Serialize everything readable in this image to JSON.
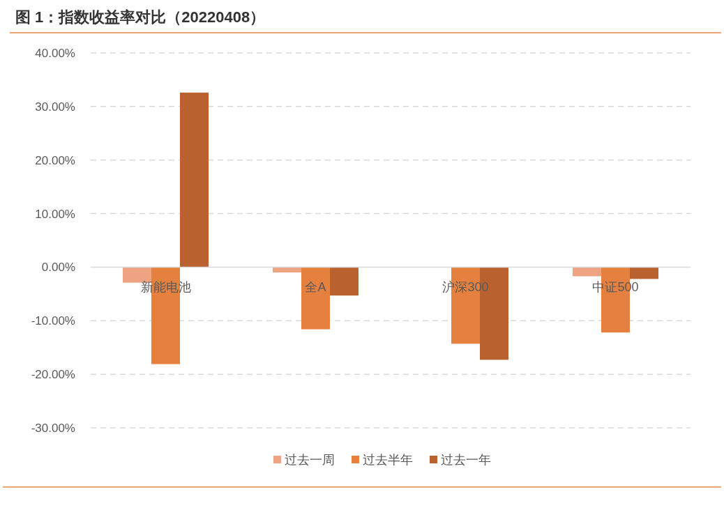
{
  "chart_data": {
    "type": "bar",
    "title": "图 1：指数收益率对比（20220408）",
    "categories": [
      "新能电池",
      "全A",
      "沪深300",
      "中证500"
    ],
    "series": [
      {
        "name": "过去一周",
        "color": "#eea383",
        "values": [
          -2.9,
          -1.0,
          0.0,
          -1.7
        ]
      },
      {
        "name": "过去半年",
        "color": "#e5803e",
        "values": [
          -18.1,
          -11.6,
          -14.3,
          -12.2
        ]
      },
      {
        "name": "过去一年",
        "color": "#b9622f",
        "values": [
          32.6,
          -5.3,
          -17.3,
          -2.2
        ]
      }
    ],
    "ylim": [
      -30,
      40
    ],
    "yticks": [
      {
        "value": -30,
        "label": "-30.00%"
      },
      {
        "value": -20,
        "label": "-20.00%"
      },
      {
        "value": -10,
        "label": "-10.00%"
      },
      {
        "value": 0,
        "label": "0.00%"
      },
      {
        "value": 10,
        "label": "10.00%"
      },
      {
        "value": 20,
        "label": "20.00%"
      },
      {
        "value": 30,
        "label": "30.00%"
      },
      {
        "value": 40,
        "label": "40.00%"
      }
    ],
    "grid": "y",
    "legend": "bottom"
  }
}
